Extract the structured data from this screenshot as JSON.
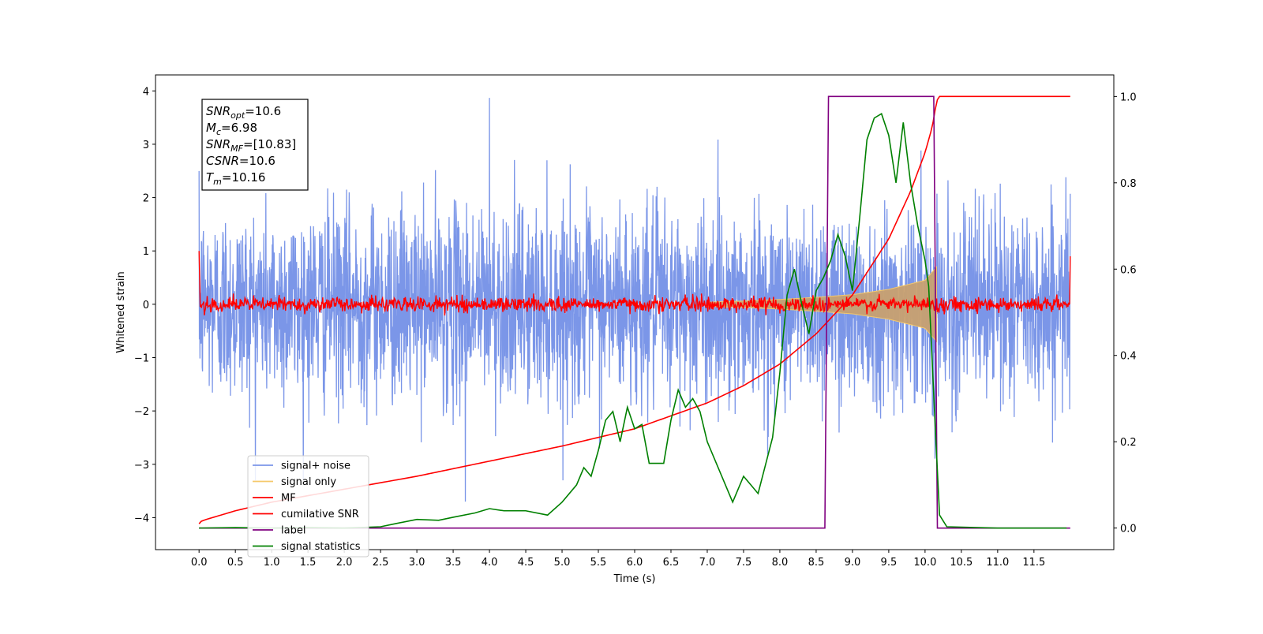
{
  "chart_data": {
    "type": "line",
    "xlabel": "Time (s)",
    "ylabel": "Whitened strain",
    "xlim": [
      -0.6,
      12.6
    ],
    "ylim": [
      -4.6,
      4.3
    ],
    "y2lim": [
      -0.05,
      1.05
    ],
    "x_ticks": [
      0.0,
      0.5,
      1.0,
      1.5,
      2.0,
      2.5,
      3.0,
      3.5,
      4.0,
      4.5,
      5.0,
      5.5,
      6.0,
      6.5,
      7.0,
      7.5,
      8.0,
      8.5,
      9.0,
      9.5,
      10.0,
      10.5,
      11.0,
      11.5
    ],
    "y_ticks": [
      -4,
      -3,
      -2,
      -1,
      0,
      1,
      2,
      3,
      4
    ],
    "y2_ticks": [
      0.0,
      0.2,
      0.4,
      0.6,
      0.8,
      1.0
    ],
    "grid": false,
    "legend_position": "lower-left",
    "stats_box": [
      {
        "main": "SNR",
        "sub": "opt",
        "value": "=10.6"
      },
      {
        "main": "M",
        "sub": "c",
        "value": "=6.98"
      },
      {
        "main": "SNR",
        "sub": "MF",
        "value": "=[10.83]"
      },
      {
        "main": "CSNR",
        "sub": "",
        "value": "=10.6"
      },
      {
        "main": "T",
        "sub": "m",
        "value": "=10.16"
      }
    ],
    "series": [
      {
        "name": "signal+ noise",
        "color": "#7b96e8",
        "axis": "left",
        "style": "dense-noise",
        "x_range": [
          0.0,
          12.0
        ],
        "amplitude_std": 0.9,
        "peak_max": 3.87,
        "peak_min": -3.7
      },
      {
        "name": "signal only",
        "color": "#f5c96b",
        "axis": "left",
        "style": "chirp-envelope",
        "x_range": [
          7.0,
          10.16
        ],
        "envelope_x": [
          7.0,
          7.5,
          8.0,
          8.5,
          9.0,
          9.5,
          10.0,
          10.16
        ],
        "envelope_y": [
          0.04,
          0.06,
          0.09,
          0.13,
          0.18,
          0.28,
          0.45,
          0.7
        ]
      },
      {
        "name": "MF",
        "color": "#ff0000",
        "axis": "left",
        "style": "noise-band",
        "x_range": [
          0.0,
          12.0
        ],
        "amplitude_std": 0.07,
        "start_value": 1.0,
        "end_value": 0.9
      },
      {
        "name": "cumilative SNR",
        "color": "#ff0000",
        "axis": "right",
        "x": [
          0.0,
          0.02,
          0.1,
          0.5,
          1.0,
          2.0,
          3.0,
          4.0,
          5.0,
          6.0,
          7.0,
          7.5,
          8.0,
          8.5,
          9.0,
          9.5,
          9.8,
          10.0,
          10.1,
          10.16,
          10.2,
          11.0,
          12.0
        ],
        "values": [
          0.01,
          0.015,
          0.02,
          0.04,
          0.06,
          0.09,
          0.12,
          0.155,
          0.19,
          0.23,
          0.29,
          0.33,
          0.38,
          0.45,
          0.54,
          0.67,
          0.78,
          0.87,
          0.93,
          0.99,
          1.0,
          1.0,
          1.0
        ]
      },
      {
        "name": "label",
        "color": "#800080",
        "axis": "right",
        "x": [
          0.0,
          8.62,
          8.67,
          10.12,
          10.17,
          12.0
        ],
        "values": [
          0.0,
          0.0,
          1.0,
          1.0,
          0.0,
          0.0
        ]
      },
      {
        "name": "signal statistics",
        "color": "#008000",
        "axis": "right",
        "x": [
          0.0,
          0.5,
          1.0,
          1.5,
          2.0,
          2.5,
          2.7,
          3.0,
          3.3,
          3.5,
          3.8,
          4.0,
          4.2,
          4.5,
          4.8,
          5.0,
          5.2,
          5.3,
          5.4,
          5.5,
          5.6,
          5.7,
          5.8,
          5.9,
          6.0,
          6.1,
          6.2,
          6.4,
          6.5,
          6.6,
          6.7,
          6.8,
          6.9,
          7.0,
          7.2,
          7.35,
          7.5,
          7.6,
          7.7,
          7.9,
          8.0,
          8.1,
          8.2,
          8.3,
          8.4,
          8.5,
          8.6,
          8.7,
          8.8,
          8.9,
          9.0,
          9.1,
          9.2,
          9.3,
          9.4,
          9.5,
          9.6,
          9.7,
          9.8,
          9.9,
          10.0,
          10.05,
          10.15,
          10.2,
          10.3,
          11.0,
          11.95
        ],
        "values": [
          0.0,
          0.001,
          0.0,
          0.001,
          0.0,
          0.003,
          0.01,
          0.02,
          0.018,
          0.025,
          0.035,
          0.045,
          0.04,
          0.04,
          0.03,
          0.06,
          0.1,
          0.14,
          0.12,
          0.18,
          0.25,
          0.27,
          0.2,
          0.28,
          0.23,
          0.24,
          0.15,
          0.15,
          0.25,
          0.32,
          0.28,
          0.3,
          0.27,
          0.2,
          0.12,
          0.06,
          0.12,
          0.1,
          0.08,
          0.21,
          0.36,
          0.54,
          0.6,
          0.52,
          0.45,
          0.55,
          0.58,
          0.62,
          0.68,
          0.63,
          0.55,
          0.72,
          0.9,
          0.95,
          0.96,
          0.91,
          0.8,
          0.94,
          0.8,
          0.7,
          0.62,
          0.56,
          0.2,
          0.03,
          0.003,
          0.0,
          0.0
        ]
      }
    ]
  }
}
